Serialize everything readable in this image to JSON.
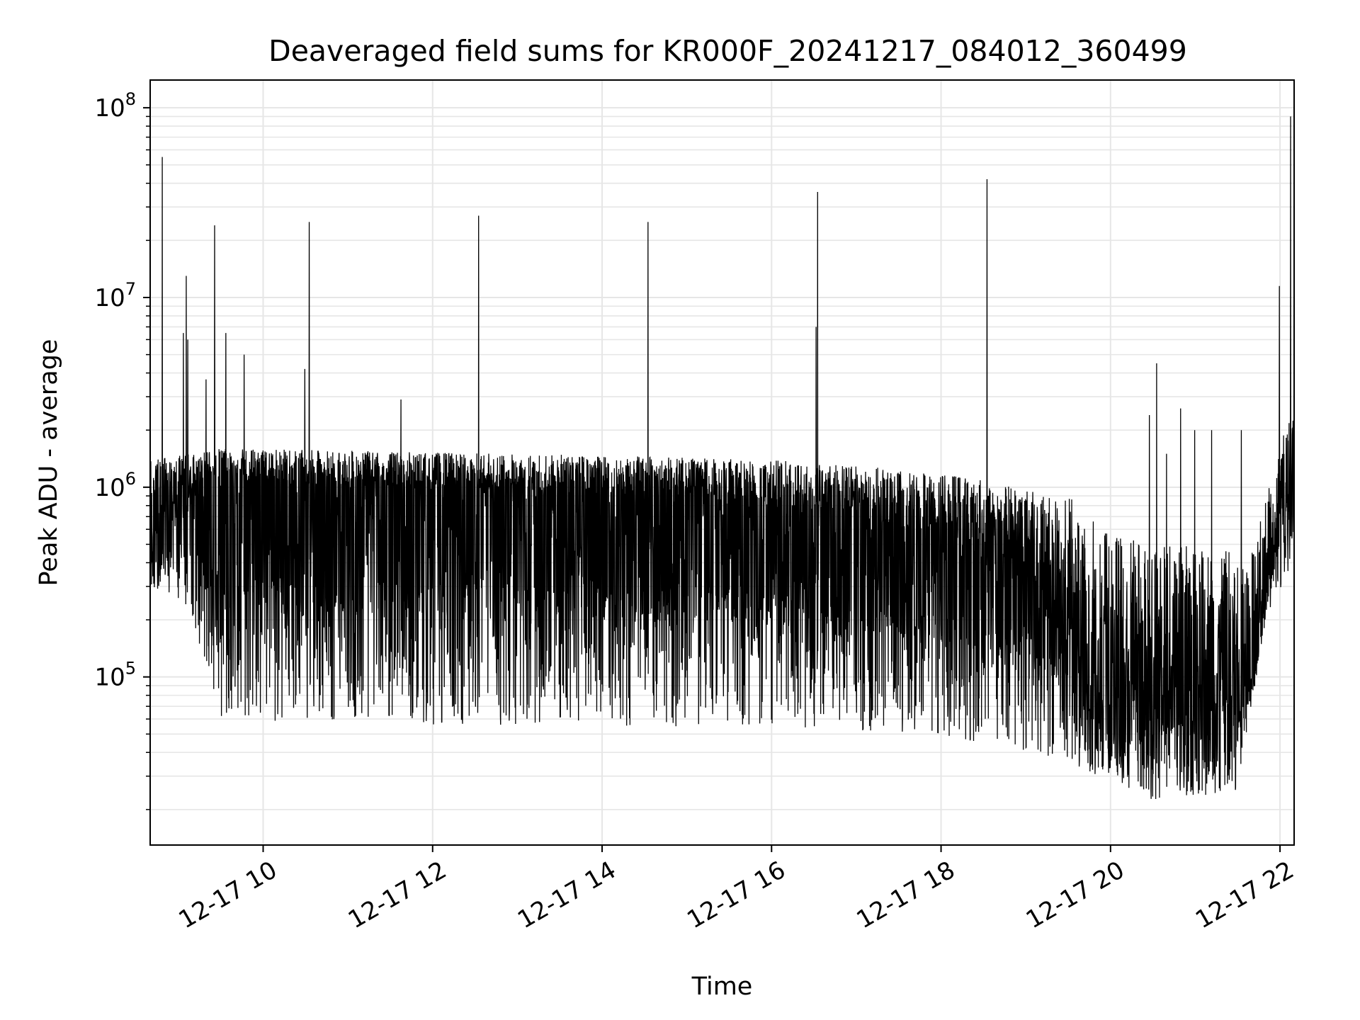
{
  "chart_data": {
    "type": "line",
    "title": "Deaveraged field sums for KR000F_20241217_084012_360499",
    "xlabel": "Time",
    "ylabel": "Peak ADU - average",
    "y_scale": "log",
    "ylim": [
      13000,
      140000000
    ],
    "xlim": [
      "2024-12-17 08:40",
      "2024-12-17 22:10"
    ],
    "grid": true,
    "line_color": "#000000",
    "grid_color": "#e6e6e6",
    "x_ticks": [
      {
        "value": "2024-12-17 10:00",
        "label": "12-17 10"
      },
      {
        "value": "2024-12-17 12:00",
        "label": "12-17 12"
      },
      {
        "value": "2024-12-17 14:00",
        "label": "12-17 14"
      },
      {
        "value": "2024-12-17 16:00",
        "label": "12-17 16"
      },
      {
        "value": "2024-12-17 18:00",
        "label": "12-17 18"
      },
      {
        "value": "2024-12-17 20:00",
        "label": "12-17 20"
      },
      {
        "value": "2024-12-17 22:00",
        "label": "12-17 22"
      }
    ],
    "y_ticks": [
      {
        "value": 100000,
        "base": "10",
        "exp": "5"
      },
      {
        "value": 1000000,
        "base": "10",
        "exp": "6"
      },
      {
        "value": 10000000,
        "base": "10",
        "exp": "7"
      },
      {
        "value": 100000000,
        "base": "10",
        "exp": "8"
      }
    ],
    "series": [
      {
        "baseline": [
          {
            "x": "2024-12-17 08:40",
            "y": 450000
          },
          {
            "x": "2024-12-17 09:00",
            "y": 900000
          },
          {
            "x": "2024-12-17 09:30",
            "y": 1100000
          },
          {
            "x": "2024-12-17 11:00",
            "y": 1000000
          },
          {
            "x": "2024-12-17 13:00",
            "y": 950000
          },
          {
            "x": "2024-12-17 15:00",
            "y": 900000
          },
          {
            "x": "2024-12-17 17:00",
            "y": 700000
          },
          {
            "x": "2024-12-17 18:30",
            "y": 500000
          },
          {
            "x": "2024-12-17 19:30",
            "y": 280000
          },
          {
            "x": "2024-12-17 19:40",
            "y": 130000
          },
          {
            "x": "2024-12-17 20:00",
            "y": 60000
          },
          {
            "x": "2024-12-17 20:30",
            "y": 120000
          },
          {
            "x": "2024-12-17 21:00",
            "y": 110000
          },
          {
            "x": "2024-12-17 21:40",
            "y": 100000
          },
          {
            "x": "2024-12-17 22:00",
            "y": 800000
          },
          {
            "x": "2024-12-17 22:10",
            "y": 900000
          }
        ],
        "upper_envelope": [
          {
            "x": "2024-12-17 08:40",
            "y": 1400000
          },
          {
            "x": "2024-12-17 09:30",
            "y": 1600000
          },
          {
            "x": "2024-12-17 13:00",
            "y": 1500000
          },
          {
            "x": "2024-12-17 16:00",
            "y": 1400000
          },
          {
            "x": "2024-12-17 18:00",
            "y": 1200000
          },
          {
            "x": "2024-12-17 19:30",
            "y": 900000
          },
          {
            "x": "2024-12-17 20:00",
            "y": 550000
          },
          {
            "x": "2024-12-17 21:40",
            "y": 450000
          },
          {
            "x": "2024-12-17 22:05",
            "y": 2300000
          }
        ],
        "lower_envelope": [
          {
            "x": "2024-12-17 08:40",
            "y": 300000
          },
          {
            "x": "2024-12-17 09:10",
            "y": 200000
          },
          {
            "x": "2024-12-17 09:30",
            "y": 60000
          },
          {
            "x": "2024-12-17 12:00",
            "y": 55000
          },
          {
            "x": "2024-12-17 16:00",
            "y": 55000
          },
          {
            "x": "2024-12-17 18:00",
            "y": 50000
          },
          {
            "x": "2024-12-17 19:30",
            "y": 35000
          },
          {
            "x": "2024-12-17 20:30",
            "y": 22000
          },
          {
            "x": "2024-12-17 21:30",
            "y": 25000
          },
          {
            "x": "2024-12-17 21:50",
            "y": 200000
          },
          {
            "x": "2024-12-17 22:10",
            "y": 400000
          }
        ],
        "spikes": [
          {
            "x": "2024-12-17 08:49",
            "y": 55000000
          },
          {
            "x": "2024-12-17 09:04",
            "y": 6500000
          },
          {
            "x": "2024-12-17 09:06",
            "y": 13000000
          },
          {
            "x": "2024-12-17 09:07",
            "y": 6000000
          },
          {
            "x": "2024-12-17 09:20",
            "y": 3700000
          },
          {
            "x": "2024-12-17 09:26",
            "y": 24000000
          },
          {
            "x": "2024-12-17 09:34",
            "y": 6500000
          },
          {
            "x": "2024-12-17 09:47",
            "y": 5000000
          },
          {
            "x": "2024-12-17 10:30",
            "y": 4200000
          },
          {
            "x": "2024-12-17 10:33",
            "y": 25000000
          },
          {
            "x": "2024-12-17 11:38",
            "y": 2900000
          },
          {
            "x": "2024-12-17 12:33",
            "y": 27000000
          },
          {
            "x": "2024-12-17 14:33",
            "y": 25000000
          },
          {
            "x": "2024-12-17 16:32",
            "y": 7000000
          },
          {
            "x": "2024-12-17 16:33",
            "y": 36000000
          },
          {
            "x": "2024-12-17 18:33",
            "y": 42000000
          },
          {
            "x": "2024-12-17 20:28",
            "y": 2400000
          },
          {
            "x": "2024-12-17 20:33",
            "y": 4500000
          },
          {
            "x": "2024-12-17 20:40",
            "y": 1500000
          },
          {
            "x": "2024-12-17 20:50",
            "y": 2600000
          },
          {
            "x": "2024-12-17 21:00",
            "y": 2000000
          },
          {
            "x": "2024-12-17 21:12",
            "y": 2000000
          },
          {
            "x": "2024-12-17 21:33",
            "y": 2000000
          },
          {
            "x": "2024-12-17 22:00",
            "y": 11500000
          },
          {
            "x": "2024-12-17 22:08",
            "y": 90000000
          }
        ]
      }
    ]
  }
}
